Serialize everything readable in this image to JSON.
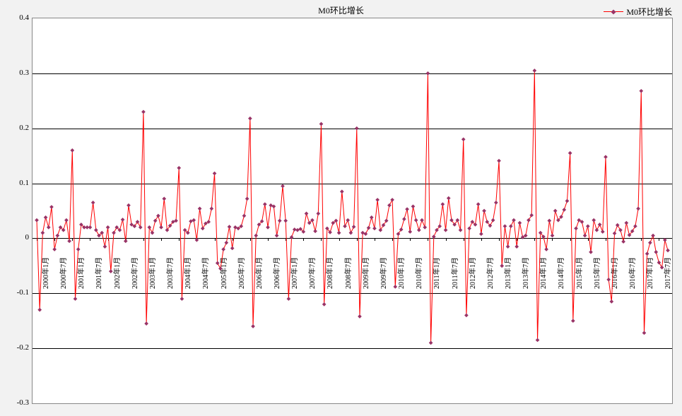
{
  "chart": {
    "type": "line",
    "title": "M0环比增长",
    "legend_label": "M0环比增长",
    "background_color": "#f2f2f2",
    "plot_background_color": "#ffffff",
    "border_color": "#888888",
    "grid_color": "#000000",
    "line_color": "#ff0000",
    "marker_color": "#993366",
    "marker_size": 4,
    "line_width": 1,
    "text_color": "#000000",
    "font_family": "SimSun",
    "title_fontsize": 12,
    "tick_fontsize": 11,
    "xlabel_fontsize": 10,
    "ylim": [
      -0.3,
      0.4
    ],
    "ytick_step": 0.1,
    "yticks": [
      -0.3,
      -0.2,
      -0.1,
      0,
      0.1,
      0.2,
      0.3,
      0.4
    ],
    "x_labels": [
      "2000年1月",
      "2000年7月",
      "2001年1月",
      "2001年7月",
      "2002年1月",
      "2002年7月",
      "2003年1月",
      "2003年7月",
      "2004年1月",
      "2004年7月",
      "2005年1月",
      "2005年7月",
      "2006年1月",
      "2006年7月",
      "2007年1月",
      "2007年7月",
      "2008年1月",
      "2008年7月",
      "2009年1月",
      "2009年7月",
      "2010年1月",
      "2010年7月",
      "2011年1月",
      "2011年7月",
      "2012年1月",
      "2012年7月",
      "2013年1月",
      "2013年7月",
      "2014年1月",
      "2014年7月",
      "2015年1月",
      "2015年7月",
      "2016年1月",
      "2016年7月",
      "2017年1月",
      "2017年7月"
    ],
    "x_label_stride": 6,
    "values": [
      0.033,
      -0.13,
      0.01,
      0.038,
      0.02,
      0.057,
      -0.02,
      0.005,
      0.02,
      0.015,
      0.033,
      -0.005,
      0.16,
      -0.11,
      -0.02,
      0.025,
      0.02,
      0.02,
      0.02,
      0.065,
      0.015,
      0.005,
      0.01,
      -0.015,
      0.02,
      -0.06,
      0.01,
      0.02,
      0.015,
      0.034,
      -0.005,
      0.06,
      0.025,
      0.022,
      0.03,
      0.02,
      0.23,
      -0.155,
      0.02,
      0.01,
      0.032,
      0.041,
      0.02,
      0.072,
      0.015,
      0.023,
      0.03,
      0.032,
      0.128,
      -0.11,
      0.015,
      0.01,
      0.031,
      0.033,
      -0.003,
      0.054,
      0.018,
      0.027,
      0.03,
      0.054,
      0.118,
      -0.045,
      -0.055,
      -0.02,
      -0.008,
      0.021,
      -0.018,
      0.02,
      0.018,
      0.022,
      0.041,
      0.072,
      0.218,
      -0.16,
      0.005,
      0.025,
      0.031,
      0.062,
      0.02,
      0.06,
      0.058,
      0.005,
      0.032,
      0.095,
      0.032,
      -0.11,
      0.002,
      0.016,
      0.015,
      0.017,
      0.012,
      0.045,
      0.028,
      0.033,
      0.013,
      0.045,
      0.208,
      -0.12,
      0.018,
      0.011,
      0.028,
      0.032,
      0.01,
      0.085,
      0.022,
      0.033,
      0.01,
      0.021,
      0.2,
      -0.142,
      0.01,
      0.008,
      0.019,
      0.038,
      0.018,
      0.07,
      0.015,
      0.024,
      0.032,
      0.06,
      0.07,
      -0.088,
      0.008,
      0.016,
      0.035,
      0.053,
      0.012,
      0.058,
      0.033,
      0.015,
      0.033,
      0.02,
      0.3,
      -0.19,
      0.003,
      0.015,
      0.022,
      0.062,
      0.015,
      0.073,
      0.033,
      0.025,
      0.033,
      0.015,
      0.18,
      -0.14,
      0.018,
      0.03,
      0.025,
      0.062,
      0.008,
      0.05,
      0.03,
      0.023,
      0.033,
      0.065,
      0.141,
      -0.05,
      0.022,
      -0.015,
      0.022,
      0.033,
      -0.015,
      0.028,
      0.002,
      0.005,
      0.033,
      0.042,
      0.305,
      -0.185,
      0.01,
      0.003,
      -0.02,
      0.032,
      0.005,
      0.05,
      0.033,
      0.039,
      0.052,
      0.068,
      0.155,
      -0.15,
      0.018,
      0.033,
      0.03,
      0.005,
      0.022,
      -0.025,
      0.033,
      0.015,
      0.025,
      0.012,
      0.148,
      -0.075,
      -0.115,
      0.009,
      0.024,
      0.015,
      -0.006,
      0.028,
      0.006,
      0.013,
      0.022,
      0.054,
      0.268,
      -0.172,
      -0.028,
      -0.008,
      0.005,
      -0.025,
      -0.044,
      -0.053,
      -0.003,
      -0.022
    ]
  }
}
